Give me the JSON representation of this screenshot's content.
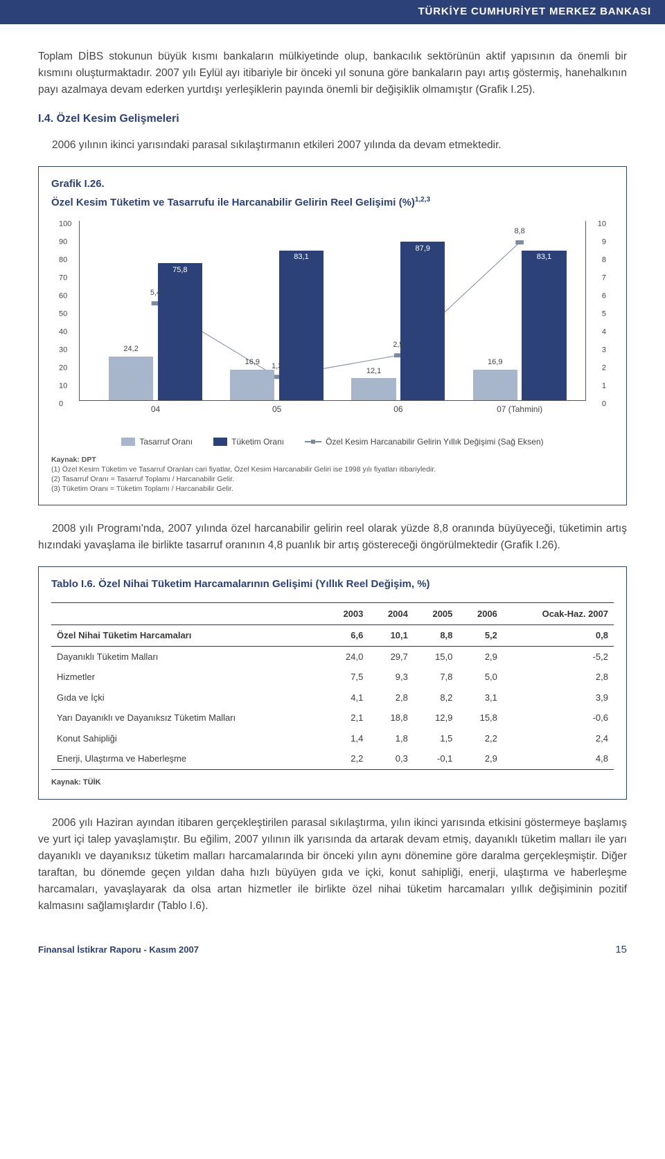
{
  "header": {
    "title": "TÜRKİYE CUMHURİYET MERKEZ BANKASI"
  },
  "paragraphs": {
    "p1": "Toplam DİBS stokunun büyük kısmı bankaların mülkiyetinde olup, bankacılık sektörünün aktif yapısının da önemli bir kısmını oluşturmaktadır. 2007 yılı Eylül ayı itibariyle bir önceki yıl sonuna göre bankaların payı artış göstermiş, hanehalkının payı azalmaya devam ederken yurtdışı yerleşiklerin payında önemli bir değişiklik olmamıştır (Grafik I.25).",
    "section_title": "I.4. Özel Kesim Gelişmeleri",
    "p2": "2006 yılının ikinci yarısındaki parasal sıkılaştırmanın etkileri 2007 yılında da devam etmektedir.",
    "p3": "2008 yılı Programı'nda, 2007 yılında özel harcanabilir gelirin reel olarak yüzde 8,8 oranında büyüyeceği, tüketimin artış hızındaki yavaşlama ile birlikte tasarruf oranının 4,8 puanlık bir artış göstereceği öngörülmektedir (Grafik I.26).",
    "p4": "2006 yılı Haziran ayından itibaren gerçekleştirilen parasal sıkılaştırma, yılın ikinci yarısında etkisini göstermeye başlamış ve yurt içi talep yavaşlamıştır. Bu eğilim, 2007 yılının ilk yarısında da artarak devam etmiş, dayanıklı tüketim malları ile yarı dayanıklı ve dayanıksız tüketim malları harcamalarında bir önceki yılın aynı dönemine göre daralma gerçekleşmiştir. Diğer taraftan, bu dönemde geçen yıldan daha hızlı büyüyen gıda ve içki, konut sahipliği, enerji, ulaştırma ve haberleşme harcamaları, yavaşlayarak da olsa artan hizmetler ile birlikte özel nihai tüketim harcamaları yıllık değişiminin pozitif kalmasını sağlamışlardır (Tablo I.6)."
  },
  "chart": {
    "title_prefix": "Grafik I.26.",
    "title": "Özel Kesim Tüketim ve Tasarrufu ile Harcanabilir Gelirin Reel Gelişimi (%)",
    "title_sup": "1,2,3",
    "left_axis": {
      "min": 0,
      "max": 100,
      "step": 10
    },
    "right_axis": {
      "min": 0,
      "max": 10,
      "step": 1
    },
    "categories": [
      "04",
      "05",
      "06",
      "07 (Tahmini)"
    ],
    "series_tasarruf": {
      "label": "Tasarruf Oranı",
      "color": "#a7b6cb",
      "values": [
        24.2,
        16.9,
        12.1,
        16.9
      ]
    },
    "series_tuketim": {
      "label": "Tüketim Oranı",
      "color": "#2b4178",
      "values": [
        75.8,
        83.1,
        87.9,
        83.1
      ]
    },
    "series_line": {
      "label": "Özel Kesim Harcanabilir Gelirin Yıllık Değişimi (Sağ Eksen)",
      "color": "#7a8aa3",
      "values_right": [
        5.4,
        1.3,
        2.5,
        8.8
      ]
    },
    "footnotes": {
      "source": "Kaynak: DPT",
      "n1": "(1) Özel Kesim Tüketim ve Tasarruf Oranları cari fiyatlar, Özel Kesim Harcanabilir Geliri ise 1998 yılı fiyatları itibariyledir.",
      "n2": "(2) Tasarruf Oranı = Tasarruf Toplamı / Harcanabilir Gelir.",
      "n3": "(3) Tüketim Oranı = Tüketim Toplamı / Harcanabilir Gelir."
    }
  },
  "table": {
    "title": "Tablo I.6. Özel Nihai Tüketim Harcamalarının Gelişimi (Yıllık Reel Değişim, %)",
    "columns": [
      "",
      "2003",
      "2004",
      "2005",
      "2006",
      "Ocak-Haz. 2007"
    ],
    "rows": [
      [
        "Özel Nihai Tüketim Harcamaları",
        "6,6",
        "10,1",
        "8,8",
        "5,2",
        "0,8"
      ],
      [
        "Dayanıklı Tüketim Malları",
        "24,0",
        "29,7",
        "15,0",
        "2,9",
        "-5,2"
      ],
      [
        "Hizmetler",
        "7,5",
        "9,3",
        "7,8",
        "5,0",
        "2,8"
      ],
      [
        "Gıda ve İçki",
        "4,1",
        "2,8",
        "8,2",
        "3,1",
        "3,9"
      ],
      [
        "Yarı Dayanıklı ve Dayanıksız Tüketim Malları",
        "2,1",
        "18,8",
        "12,9",
        "15,8",
        "-0,6"
      ],
      [
        "Konut Sahipliği",
        "1,4",
        "1,8",
        "1,5",
        "2,2",
        "2,4"
      ],
      [
        "Enerji, Ulaştırma ve Haberleşme",
        "2,2",
        "0,3",
        "-0,1",
        "2,9",
        "4,8"
      ]
    ],
    "source": "Kaynak: TÜİK"
  },
  "footer": {
    "report": "Finansal İstikrar Raporu - Kasım 2007",
    "page": "15"
  }
}
